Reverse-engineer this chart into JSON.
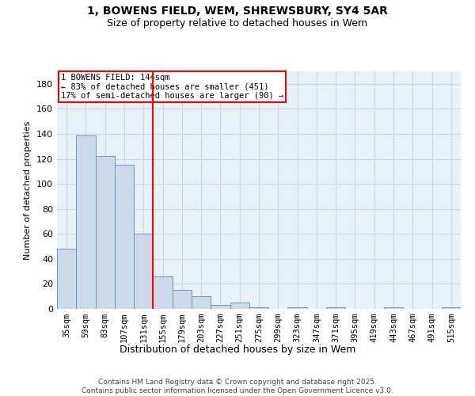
{
  "title": "1, BOWENS FIELD, WEM, SHREWSBURY, SY4 5AR",
  "subtitle": "Size of property relative to detached houses in Wem",
  "xlabel": "Distribution of detached houses by size in Wem",
  "ylabel": "Number of detached properties",
  "bar_color": "#ccd9e8",
  "bar_edge_color": "#6699bb",
  "categories": [
    "35sqm",
    "59sqm",
    "83sqm",
    "107sqm",
    "131sqm",
    "155sqm",
    "179sqm",
    "203sqm",
    "227sqm",
    "251sqm",
    "275sqm",
    "299sqm",
    "323sqm",
    "347sqm",
    "371sqm",
    "395sqm",
    "419sqm",
    "443sqm",
    "467sqm",
    "491sqm",
    "515sqm"
  ],
  "values": [
    48,
    139,
    122,
    115,
    60,
    26,
    15,
    10,
    3,
    5,
    1,
    0,
    1,
    0,
    1,
    0,
    0,
    1,
    0,
    0,
    1
  ],
  "ylim": [
    0,
    190
  ],
  "yticks": [
    0,
    20,
    40,
    60,
    80,
    100,
    120,
    140,
    160,
    180
  ],
  "vline_index": 4.5,
  "annotation_text": "1 BOWENS FIELD: 144sqm\n← 83% of detached houses are smaller (451)\n17% of semi-detached houses are larger (90) →",
  "annotation_box_color": "white",
  "annotation_box_edgecolor": "red",
  "vline_color": "red",
  "grid_color": "#c8d8e8",
  "background_color": "#e8f0f8",
  "footnote": "Contains HM Land Registry data © Crown copyright and database right 2025.\nContains public sector information licensed under the Open Government Licence v3.0.",
  "title_fontsize": 10,
  "subtitle_fontsize": 9,
  "ylabel_fontsize": 8,
  "xlabel_fontsize": 9,
  "tick_fontsize": 7.5,
  "ytick_fontsize": 8,
  "footnote_fontsize": 6.5
}
